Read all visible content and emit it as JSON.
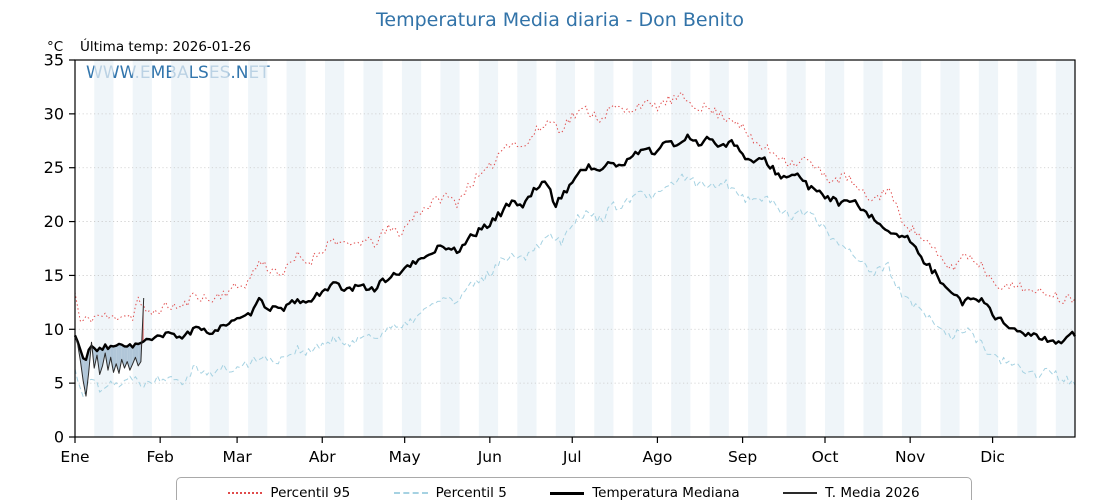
{
  "title": "Temperatura Media diaria - Don Benito",
  "labels": {
    "y_unit": "°C",
    "last_temp": "Última temp: 2026-01-26",
    "watermark": "WWW.EMBALSES.NET"
  },
  "chart_data": {
    "type": "line",
    "title": "Temperatura Media diaria - Don Benito",
    "xlabel": "",
    "ylabel": "°C",
    "ylim": [
      0,
      35
    ],
    "yticks": [
      0,
      5,
      10,
      15,
      20,
      25,
      30,
      35
    ],
    "x_months": [
      "Ene",
      "Feb",
      "Mar",
      "Abr",
      "May",
      "Jun",
      "Jul",
      "Ago",
      "Sep",
      "Oct",
      "Nov",
      "Dic"
    ],
    "month_start_day": [
      1,
      32,
      60,
      91,
      121,
      152,
      182,
      213,
      244,
      274,
      305,
      335
    ],
    "days_in_year": 365,
    "grid": true,
    "legend_position": "bottom",
    "band_color": "#e9f1f7",
    "series": [
      {
        "name": "Percentil 95",
        "color": "#e04b4b",
        "line": "dotted",
        "width": 1,
        "noise": 0.5,
        "points": [
          [
            1,
            13.4
          ],
          [
            3,
            10.6
          ],
          [
            6,
            11.0
          ],
          [
            10,
            11.3
          ],
          [
            14,
            11.0
          ],
          [
            18,
            11.4
          ],
          [
            22,
            11.2
          ],
          [
            24,
            12.9
          ],
          [
            27,
            11.3
          ],
          [
            31,
            11.8
          ],
          [
            36,
            12.2
          ],
          [
            40,
            12.0
          ],
          [
            45,
            13.3
          ],
          [
            50,
            12.6
          ],
          [
            55,
            13.4
          ],
          [
            59,
            13.8
          ],
          [
            64,
            14.4
          ],
          [
            68,
            16.3
          ],
          [
            72,
            15.6
          ],
          [
            77,
            15.2
          ],
          [
            82,
            16.8
          ],
          [
            86,
            16.2
          ],
          [
            90,
            17.2
          ],
          [
            95,
            18.4
          ],
          [
            100,
            17.6
          ],
          [
            105,
            18.2
          ],
          [
            110,
            18.0
          ],
          [
            115,
            19.3
          ],
          [
            120,
            19.0
          ],
          [
            125,
            20.8
          ],
          [
            130,
            21.5
          ],
          [
            135,
            22.4
          ],
          [
            140,
            21.8
          ],
          [
            145,
            23.6
          ],
          [
            151,
            24.6
          ],
          [
            156,
            26.6
          ],
          [
            160,
            27.6
          ],
          [
            164,
            26.8
          ],
          [
            169,
            28.4
          ],
          [
            174,
            29.4
          ],
          [
            178,
            28.6
          ],
          [
            182,
            29.8
          ],
          [
            187,
            30.4
          ],
          [
            192,
            29.6
          ],
          [
            197,
            30.6
          ],
          [
            202,
            30.2
          ],
          [
            207,
            31.0
          ],
          [
            212,
            30.6
          ],
          [
            217,
            31.2
          ],
          [
            222,
            31.5
          ],
          [
            227,
            30.8
          ],
          [
            232,
            30.4
          ],
          [
            237,
            29.8
          ],
          [
            242,
            29.4
          ],
          [
            247,
            27.6
          ],
          [
            252,
            26.8
          ],
          [
            257,
            26.2
          ],
          [
            262,
            25.4
          ],
          [
            267,
            25.8
          ],
          [
            272,
            24.6
          ],
          [
            277,
            23.8
          ],
          [
            282,
            24.2
          ],
          [
            287,
            22.6
          ],
          [
            292,
            22.0
          ],
          [
            297,
            23.2
          ],
          [
            301,
            20.6
          ],
          [
            306,
            19.2
          ],
          [
            310,
            18.4
          ],
          [
            315,
            16.8
          ],
          [
            320,
            15.6
          ],
          [
            325,
            17.0
          ],
          [
            330,
            16.2
          ],
          [
            335,
            14.6
          ],
          [
            340,
            13.8
          ],
          [
            345,
            14.2
          ],
          [
            350,
            13.2
          ],
          [
            355,
            13.6
          ],
          [
            360,
            12.8
          ],
          [
            365,
            13.0
          ]
        ]
      },
      {
        "name": "Percentil 5",
        "color": "#a6d2e2",
        "line": "dashed",
        "width": 1,
        "noise": 0.45,
        "points": [
          [
            1,
            6.2
          ],
          [
            4,
            4.0
          ],
          [
            7,
            5.4
          ],
          [
            10,
            4.6
          ],
          [
            14,
            5.2
          ],
          [
            18,
            4.8
          ],
          [
            22,
            5.6
          ],
          [
            26,
            5.0
          ],
          [
            31,
            5.4
          ],
          [
            36,
            5.8
          ],
          [
            40,
            5.2
          ],
          [
            45,
            6.6
          ],
          [
            50,
            5.8
          ],
          [
            55,
            6.4
          ],
          [
            59,
            6.2
          ],
          [
            64,
            6.8
          ],
          [
            68,
            7.6
          ],
          [
            72,
            7.0
          ],
          [
            77,
            7.4
          ],
          [
            82,
            8.2
          ],
          [
            86,
            7.8
          ],
          [
            90,
            8.4
          ],
          [
            95,
            9.0
          ],
          [
            100,
            8.6
          ],
          [
            105,
            9.4
          ],
          [
            110,
            9.2
          ],
          [
            115,
            10.2
          ],
          [
            120,
            10.0
          ],
          [
            125,
            11.2
          ],
          [
            130,
            12.0
          ],
          [
            135,
            13.0
          ],
          [
            140,
            12.4
          ],
          [
            145,
            14.0
          ],
          [
            151,
            15.0
          ],
          [
            156,
            16.2
          ],
          [
            160,
            17.2
          ],
          [
            164,
            16.6
          ],
          [
            169,
            17.8
          ],
          [
            174,
            18.8
          ],
          [
            178,
            18.2
          ],
          [
            182,
            20.0
          ],
          [
            187,
            20.8
          ],
          [
            192,
            20.2
          ],
          [
            197,
            21.4
          ],
          [
            202,
            21.8
          ],
          [
            207,
            22.6
          ],
          [
            212,
            22.2
          ],
          [
            217,
            23.2
          ],
          [
            222,
            24.2
          ],
          [
            227,
            23.6
          ],
          [
            232,
            23.2
          ],
          [
            237,
            23.8
          ],
          [
            242,
            22.8
          ],
          [
            247,
            21.8
          ],
          [
            252,
            22.4
          ],
          [
            257,
            21.2
          ],
          [
            262,
            20.6
          ],
          [
            267,
            21.0
          ],
          [
            272,
            19.8
          ],
          [
            277,
            18.4
          ],
          [
            282,
            17.6
          ],
          [
            287,
            16.4
          ],
          [
            292,
            15.2
          ],
          [
            297,
            15.8
          ],
          [
            301,
            13.6
          ],
          [
            306,
            12.2
          ],
          [
            310,
            11.4
          ],
          [
            315,
            10.2
          ],
          [
            320,
            9.4
          ],
          [
            325,
            10.0
          ],
          [
            330,
            8.8
          ],
          [
            335,
            7.6
          ],
          [
            340,
            6.8
          ],
          [
            345,
            6.4
          ],
          [
            350,
            5.8
          ],
          [
            355,
            6.2
          ],
          [
            360,
            5.4
          ],
          [
            365,
            5.2
          ]
        ]
      },
      {
        "name": "Temperatura Mediana",
        "color": "#000000",
        "line": "solid",
        "width": 2.4,
        "noise": 0.3,
        "points": [
          [
            1,
            9.4
          ],
          [
            3,
            8.0
          ],
          [
            5,
            7.2
          ],
          [
            7,
            8.6
          ],
          [
            9,
            7.8
          ],
          [
            12,
            8.4
          ],
          [
            15,
            8.2
          ],
          [
            18,
            8.8
          ],
          [
            21,
            8.4
          ],
          [
            24,
            8.6
          ],
          [
            27,
            8.9
          ],
          [
            31,
            9.2
          ],
          [
            36,
            9.6
          ],
          [
            40,
            9.3
          ],
          [
            45,
            10.0
          ],
          [
            50,
            9.7
          ],
          [
            55,
            10.4
          ],
          [
            59,
            10.7
          ],
          [
            64,
            11.2
          ],
          [
            68,
            12.6
          ],
          [
            72,
            12.0
          ],
          [
            77,
            11.8
          ],
          [
            82,
            12.8
          ],
          [
            86,
            12.4
          ],
          [
            90,
            13.4
          ],
          [
            95,
            14.2
          ],
          [
            100,
            13.6
          ],
          [
            105,
            14.0
          ],
          [
            110,
            13.8
          ],
          [
            115,
            14.8
          ],
          [
            120,
            15.4
          ],
          [
            125,
            16.2
          ],
          [
            130,
            17.0
          ],
          [
            135,
            17.8
          ],
          [
            140,
            17.2
          ],
          [
            145,
            18.6
          ],
          [
            151,
            19.6
          ],
          [
            156,
            20.8
          ],
          [
            160,
            22.0
          ],
          [
            164,
            21.4
          ],
          [
            169,
            23.2
          ],
          [
            172,
            23.8
          ],
          [
            176,
            21.6
          ],
          [
            180,
            23.0
          ],
          [
            184,
            24.4
          ],
          [
            188,
            25.2
          ],
          [
            192,
            24.6
          ],
          [
            196,
            25.6
          ],
          [
            200,
            25.0
          ],
          [
            204,
            26.2
          ],
          [
            208,
            26.8
          ],
          [
            212,
            26.4
          ],
          [
            216,
            27.4
          ],
          [
            220,
            27.0
          ],
          [
            224,
            28.0
          ],
          [
            228,
            27.2
          ],
          [
            232,
            27.8
          ],
          [
            236,
            27.0
          ],
          [
            240,
            27.4
          ],
          [
            244,
            26.2
          ],
          [
            248,
            25.4
          ],
          [
            252,
            25.8
          ],
          [
            256,
            24.6
          ],
          [
            260,
            24.0
          ],
          [
            264,
            24.4
          ],
          [
            268,
            23.2
          ],
          [
            272,
            22.6
          ],
          [
            276,
            22.2
          ],
          [
            280,
            21.6
          ],
          [
            284,
            22.0
          ],
          [
            288,
            20.8
          ],
          [
            292,
            20.2
          ],
          [
            296,
            19.4
          ],
          [
            300,
            18.8
          ],
          [
            304,
            18.4
          ],
          [
            308,
            17.0
          ],
          [
            312,
            15.8
          ],
          [
            316,
            14.6
          ],
          [
            320,
            13.6
          ],
          [
            324,
            12.4
          ],
          [
            328,
            13.0
          ],
          [
            332,
            12.6
          ],
          [
            336,
            11.2
          ],
          [
            340,
            10.4
          ],
          [
            344,
            9.8
          ],
          [
            348,
            9.6
          ],
          [
            352,
            9.2
          ],
          [
            356,
            8.8
          ],
          [
            360,
            9.0
          ],
          [
            364,
            9.6
          ]
        ]
      },
      {
        "name": "T. Media 2026",
        "color": "#2a2a2a",
        "line": "solid",
        "width": 1,
        "daily_start_day": 1,
        "daily": [
          9.4,
          8.6,
          7.0,
          5.2,
          3.8,
          6.0,
          8.8,
          6.4,
          7.6,
          5.8,
          6.6,
          7.8,
          6.2,
          7.4,
          6.0,
          6.8,
          5.9,
          7.2,
          6.4,
          7.0,
          6.2,
          6.8,
          7.4,
          6.6,
          7.0,
          12.9
        ],
        "fill_vs": "Temperatura Mediana",
        "fill_below_color": "#9db9cf",
        "fill_above_color": "#d95050"
      }
    ]
  }
}
